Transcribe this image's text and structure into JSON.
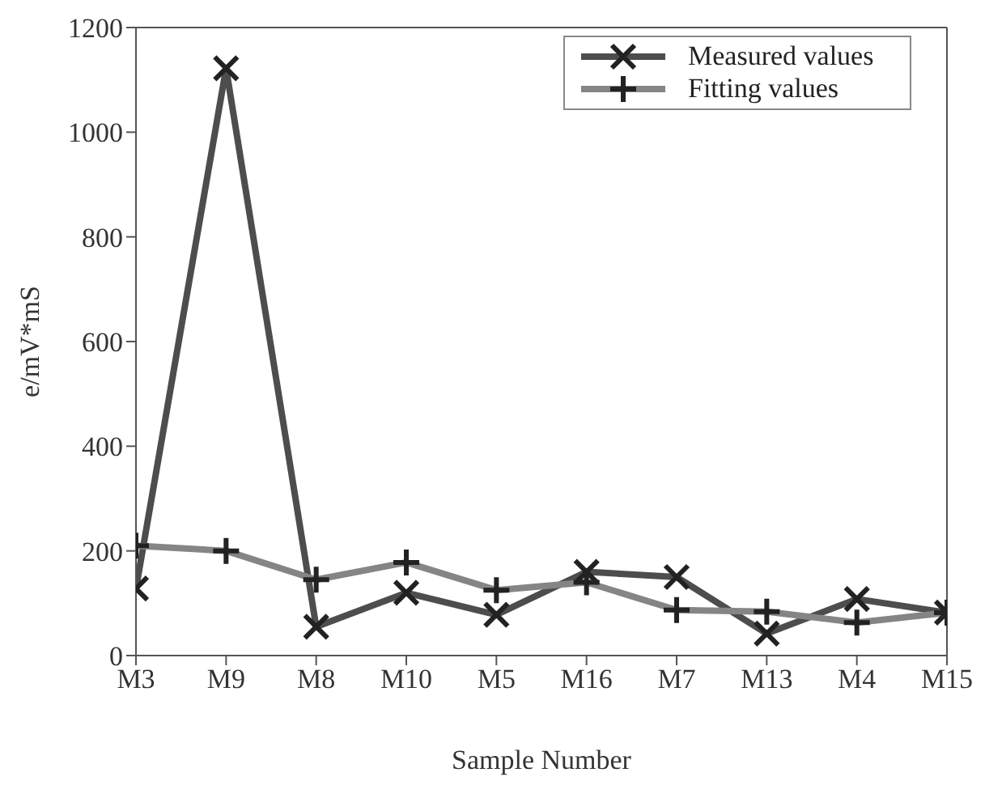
{
  "chart_data": {
    "type": "line",
    "xlabel": "Sample Number",
    "ylabel": "e/mV*mS",
    "categories": [
      "M3",
      "M9",
      "M8",
      "M10",
      "M5",
      "M16",
      "M7",
      "M13",
      "M4",
      "M15"
    ],
    "series": [
      {
        "name": "Measured values",
        "color": "#4d4d4d",
        "marker": "cross",
        "values": [
          128,
          1122,
          55,
          120,
          78,
          160,
          150,
          42,
          108,
          82
        ]
      },
      {
        "name": "Fitting values",
        "color": "#858585",
        "marker": "plus",
        "values": [
          210,
          200,
          145,
          178,
          125,
          140,
          87,
          84,
          63,
          82
        ]
      }
    ],
    "ylim": [
      0,
      1200
    ],
    "yticks": [
      0,
      200,
      400,
      600,
      800,
      1000,
      1200
    ],
    "grid": false,
    "legend": "top right"
  }
}
